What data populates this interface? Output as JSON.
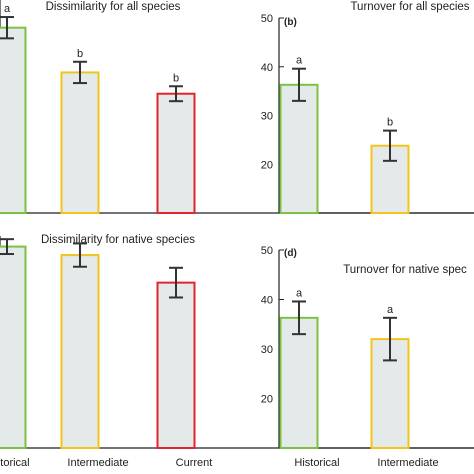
{
  "colors": {
    "bar_fill": "#e4e9e9",
    "historical": "#7cc242",
    "intermediate": "#f2c41e",
    "current": "#e0262b",
    "axis": "#222222",
    "error_bar": "#333333"
  },
  "chart_data": [
    {
      "type": "bar",
      "title": "Dissimilarity for all species",
      "panel_label": "",
      "categories": [
        "Historical",
        "Intermediate",
        "Current"
      ],
      "values": [
        0.87,
        0.66,
        0.56
      ],
      "errors": [
        0.05,
        0.05,
        0.035
      ],
      "significance": [
        "a",
        "b",
        "b"
      ],
      "ylim": [
        0.0,
        1.0
      ],
      "yticks": [],
      "show_xticklabels": false
    },
    {
      "type": "bar",
      "title": "Turnover for all species",
      "panel_label": "(b)",
      "categories": [
        "Historical",
        "Intermediate",
        "Current"
      ],
      "values": [
        36.3,
        23.8,
        null
      ],
      "errors": [
        3.3,
        3.1,
        null
      ],
      "significance": [
        "a",
        "b",
        ""
      ],
      "ylim": [
        10,
        50
      ],
      "yticks": [
        20,
        30,
        40,
        50
      ],
      "show_xticklabels": false
    },
    {
      "type": "bar",
      "title": "Dissimilarity for native species",
      "panel_label": "",
      "categories": [
        "Historical",
        "Intermediate",
        "Current"
      ],
      "values": [
        0.95,
        0.91,
        0.78
      ],
      "errors": [
        0.035,
        0.055,
        0.07
      ],
      "significance": [
        "",
        "",
        ""
      ],
      "ylim": [
        0.0,
        1.0
      ],
      "yticks": [],
      "show_xticklabels": true
    },
    {
      "type": "bar",
      "title": "Turnover for native spec",
      "panel_label": "(d)",
      "categories": [
        "Historical",
        "Intermediate",
        "Current"
      ],
      "values": [
        36.3,
        32.0,
        null
      ],
      "errors": [
        3.3,
        4.3,
        null
      ],
      "significance": [
        "a",
        "a",
        ""
      ],
      "ylim": [
        10,
        50
      ],
      "yticks": [
        20,
        30,
        40,
        50
      ],
      "show_xticklabels": true
    }
  ]
}
